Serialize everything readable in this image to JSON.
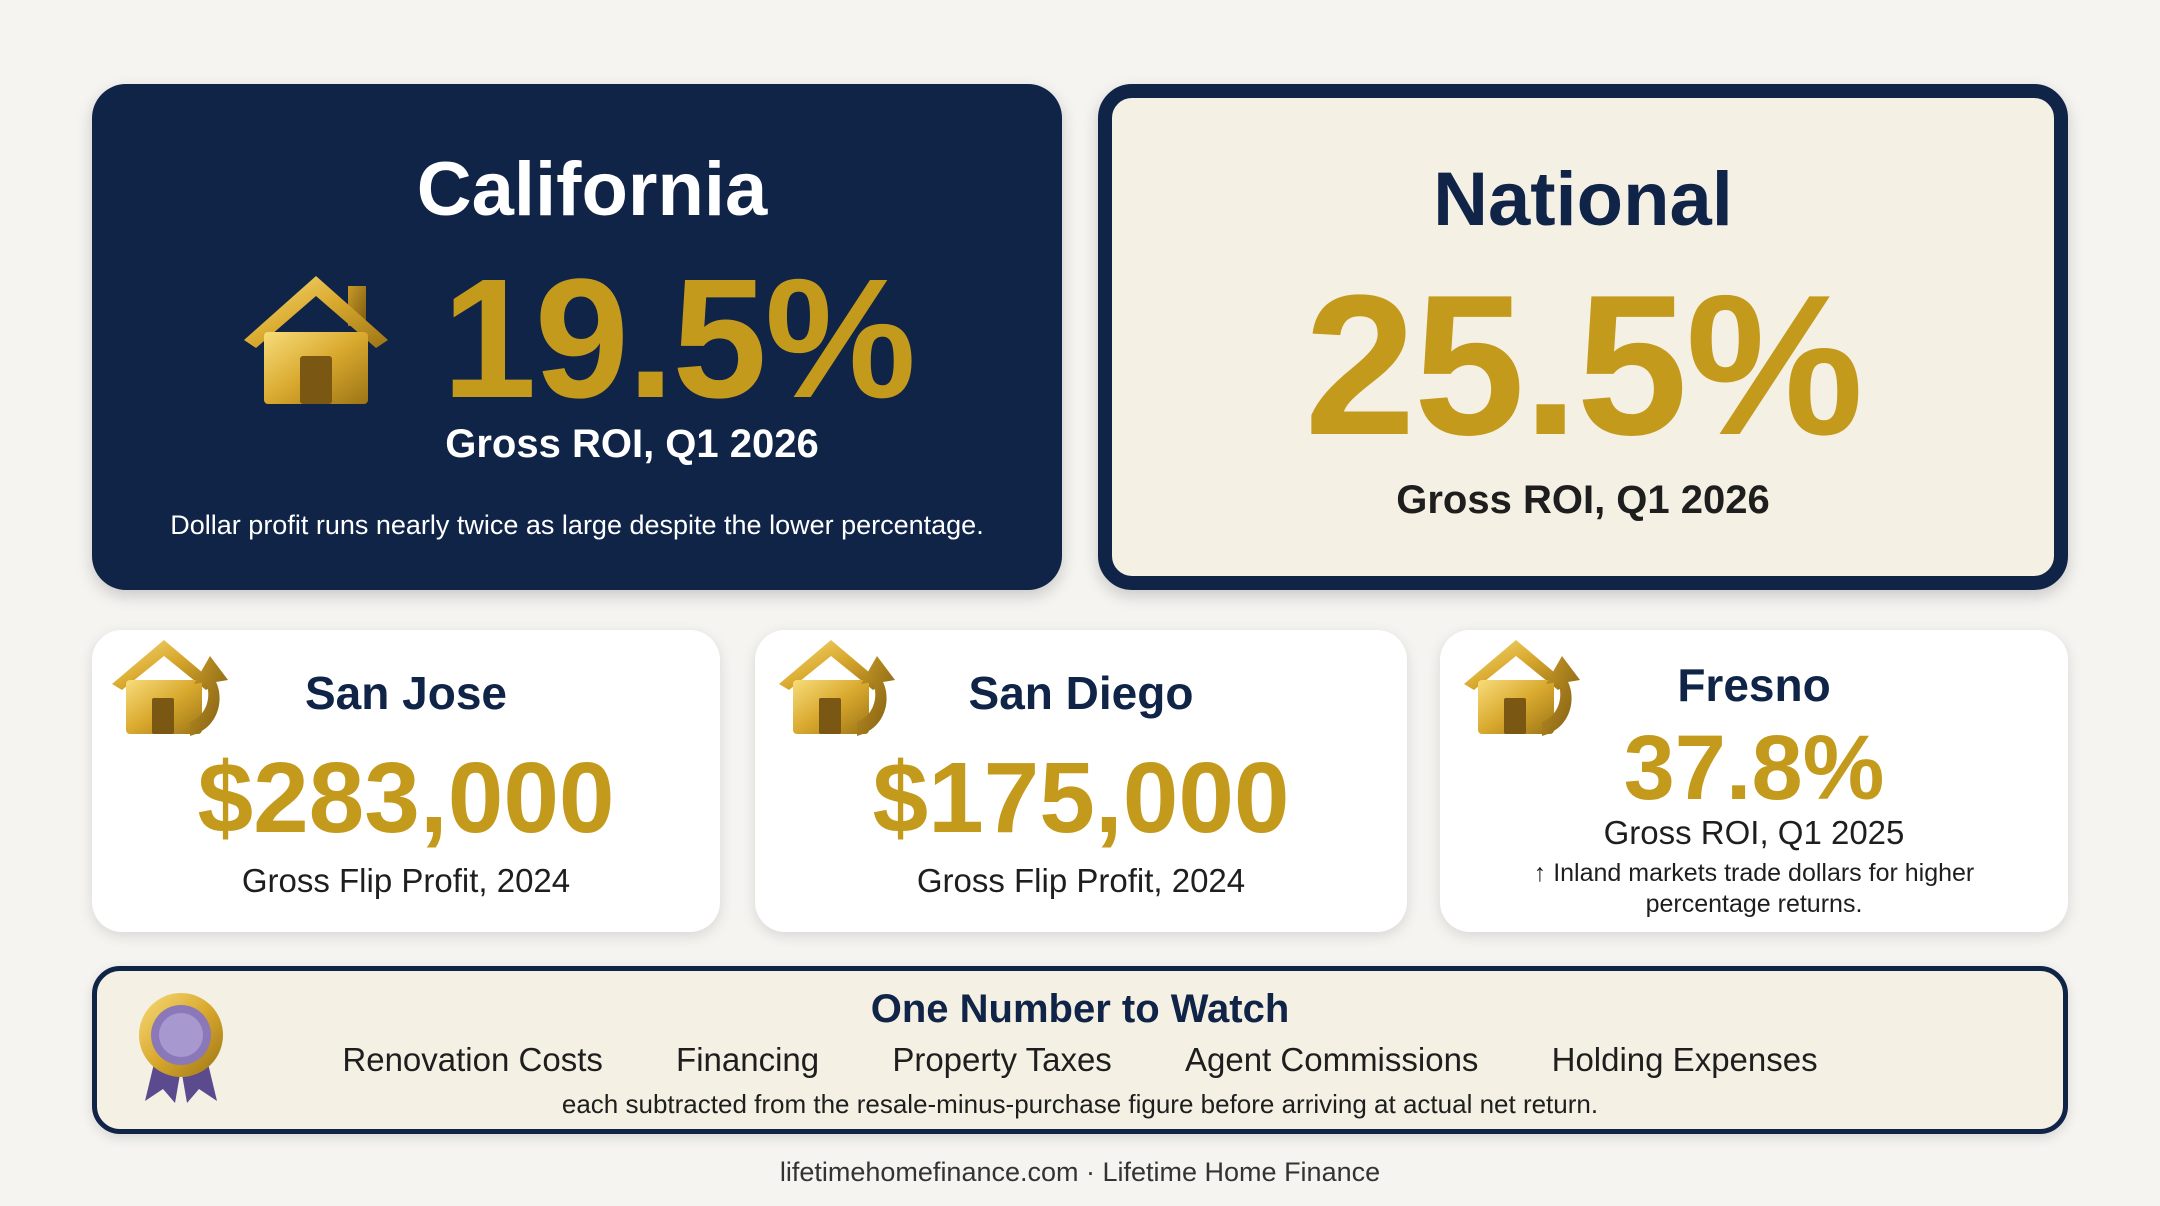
{
  "california": {
    "title": "California",
    "roi": "19.5%",
    "label": "Gross ROI, Q1 2026",
    "note": "Dollar profit runs nearly twice as large despite the lower percentage."
  },
  "national": {
    "title": "National",
    "roi": "25.5%",
    "label": "Gross ROI, Q1 2026"
  },
  "cities": [
    {
      "name": "San Jose",
      "value": "$283,000",
      "label": "Gross Flip Profit, 2024"
    },
    {
      "name": "San Diego",
      "value": "$175,000",
      "label": "Gross Flip Profit, 2024"
    },
    {
      "name": "Fresno",
      "value": "37.8%",
      "label": "Gross ROI, Q1 2025",
      "note": "↑ Inland markets trade dollars for higher percentage returns."
    }
  ],
  "watch": {
    "title": "One Number to Watch",
    "items": [
      "Renovation Costs",
      "Financing",
      "Property Taxes",
      "Agent Commissions",
      "Holding Expenses"
    ],
    "note": "each subtracted from the resale-minus-purchase figure before arriving at actual net return."
  },
  "footer": "lifetimehomefinance.com · Lifetime Home Finance",
  "colors": {
    "navy": "#102448",
    "gold": "#c49a1d",
    "cream": "#f5f0e4"
  },
  "icons": {
    "house": "house-icon",
    "house_arrow": "house-arrow-icon",
    "award": "award-ribbon-icon"
  }
}
